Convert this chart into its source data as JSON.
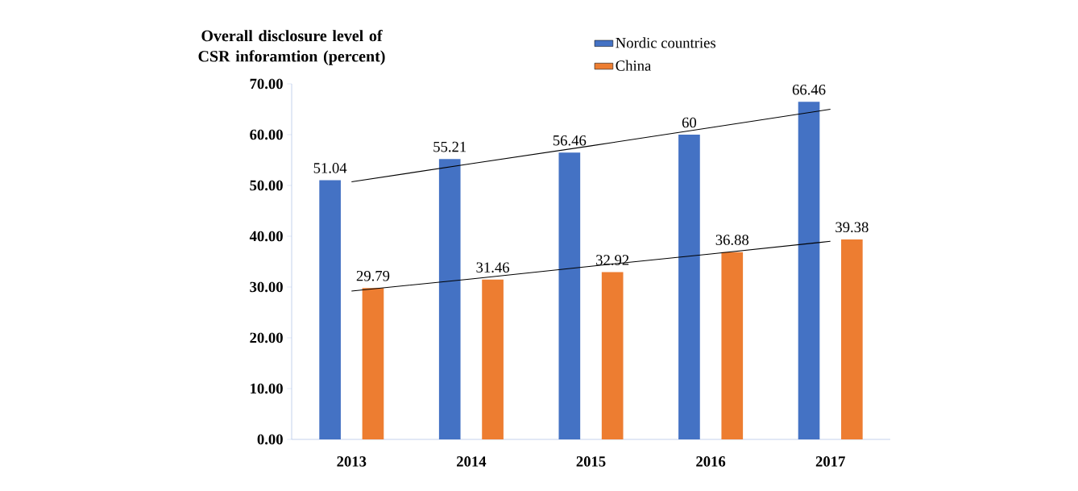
{
  "chart_data": {
    "type": "bar",
    "ylabel": "Overall disclosure level of CSR inforamtion (percent)",
    "categories": [
      "2013",
      "2014",
      "2015",
      "2016",
      "2017"
    ],
    "series": [
      {
        "name": "Nordic countries",
        "color": "#4472c4",
        "values": [
          51.04,
          55.21,
          56.46,
          60,
          66.46
        ],
        "value_labels": [
          "51.04",
          "55.21",
          "56.46",
          "60",
          "66.46"
        ]
      },
      {
        "name": "China",
        "color": "#ed7d31",
        "values": [
          29.79,
          31.46,
          32.92,
          36.88,
          39.38
        ],
        "value_labels": [
          "29.79",
          "31.46",
          "32.92",
          "36.88",
          "39.38"
        ]
      },
      {
        "type": "line",
        "color": "#000000",
        "values": [
          50.7,
          54.3,
          57.8,
          61.4,
          65.0
        ]
      },
      {
        "type": "line",
        "color": "#000000",
        "values": [
          29.2,
          31.6,
          34.1,
          36.5,
          39.0
        ]
      }
    ],
    "ylim": [
      0,
      70
    ],
    "yticks": [
      {
        "value": 0,
        "label": "0.00"
      },
      {
        "value": 10,
        "label": "10.00"
      },
      {
        "value": 20,
        "label": "20.00"
      },
      {
        "value": 30,
        "label": "30.00"
      },
      {
        "value": 40,
        "label": "40.00"
      },
      {
        "value": 50,
        "label": "50.00"
      },
      {
        "value": 60,
        "label": "60.00"
      },
      {
        "value": 70,
        "label": "70.00"
      }
    ],
    "legend": "top",
    "grid": false
  }
}
